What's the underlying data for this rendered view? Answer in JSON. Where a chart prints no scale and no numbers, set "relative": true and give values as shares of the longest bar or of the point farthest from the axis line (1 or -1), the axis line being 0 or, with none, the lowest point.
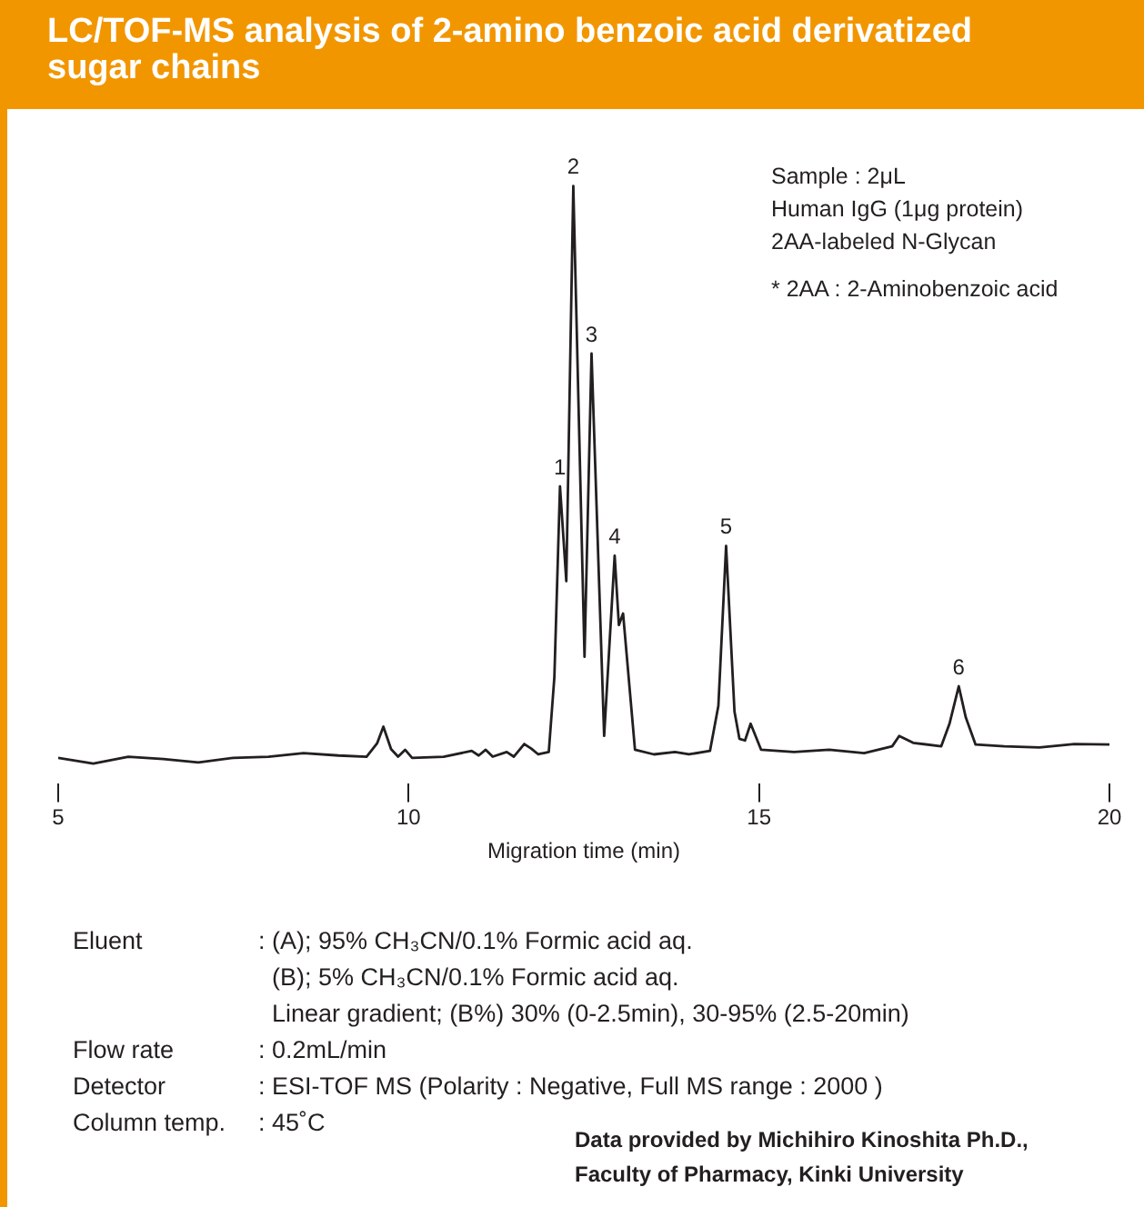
{
  "chart_data": {
    "type": "line",
    "title": "LC/TOF-MS analysis of 2-amino benzoic acid derivatized sugar chains",
    "xlabel": "Migration time (min)",
    "relative": true,
    "xlim": [
      5,
      20
    ],
    "xticks": [
      5,
      10,
      15,
      20
    ],
    "grid": false,
    "legend": false,
    "marker": "none",
    "line_style": "solid",
    "series": [
      {
        "color": "#231f20",
        "x": [
          5,
          5.5,
          6,
          6.5,
          7,
          7.5,
          8,
          8.5,
          9,
          9.4,
          9.55,
          9.64,
          9.75,
          9.85,
          9.95,
          10.05,
          10.5,
          10.9,
          11.0,
          11.1,
          11.2,
          11.4,
          11.5,
          11.65,
          11.75,
          11.85,
          12.0,
          12.08,
          12.16,
          12.25,
          12.35,
          12.51,
          12.61,
          12.79,
          12.94,
          13.0,
          13.06,
          13.23,
          13.5,
          13.8,
          14.0,
          14.3,
          14.42,
          14.53,
          14.65,
          14.72,
          14.8,
          14.88,
          15.03,
          15.5,
          16.0,
          16.5,
          16.9,
          17.0,
          17.2,
          17.6,
          17.72,
          17.85,
          17.95,
          18.09,
          18.5,
          19.0,
          19.5,
          20
        ],
        "values": [
          0.01,
          0,
          0.012,
          0.008,
          0.002,
          0.01,
          0.012,
          0.018,
          0.014,
          0.012,
          0.035,
          0.064,
          0.025,
          0.012,
          0.024,
          0.01,
          0.012,
          0.022,
          0.014,
          0.024,
          0.012,
          0.02,
          0.012,
          0.034,
          0.026,
          0.016,
          0.02,
          0.15,
          0.48,
          0.316,
          1,
          0.185,
          0.71,
          0.048,
          0.36,
          0.24,
          0.26,
          0.024,
          0.016,
          0.02,
          0.016,
          0.022,
          0.1,
          0.377,
          0.09,
          0.043,
          0.04,
          0.069,
          0.024,
          0.02,
          0.024,
          0.018,
          0.03,
          0.048,
          0.036,
          0.03,
          0.07,
          0.134,
          0.08,
          0.033,
          0.03,
          0.028,
          0.034,
          0.033
        ]
      }
    ],
    "annotations": [
      {
        "text": "1",
        "x": 12.16,
        "y": 0.48
      },
      {
        "text": "2",
        "x": 12.35,
        "y": 1
      },
      {
        "text": "3",
        "x": 12.61,
        "y": 0.71
      },
      {
        "text": "4",
        "x": 12.94,
        "y": 0.36
      },
      {
        "text": "5",
        "x": 14.53,
        "y": 0.377
      },
      {
        "text": "6",
        "x": 17.85,
        "y": 0.134
      },
      "Sample : 2μL",
      "Human IgG (1μg protein)",
      "2AA-labeled N-Glycan",
      "* 2AA : 2-Aminobenzoic acid",
      "Eluent : (A); 95% CH₃CN/0.1% Formic acid aq.",
      "(B); 5% CH₃CN/0.1% Formic acid aq.",
      "Linear gradient; (B%) 30% (0-2.5min), 30-95% (2.5-20min)",
      "Flow rate : 0.2mL/min",
      "Detector : ESI-TOF MS (Polarity : Negative, Full MS range : 2000 )",
      "Column temp. : 45˚C",
      "Data provided by Michihiro Kinoshita Ph.D.,",
      "Faculty of Pharmacy, Kinki University"
    ]
  }
}
